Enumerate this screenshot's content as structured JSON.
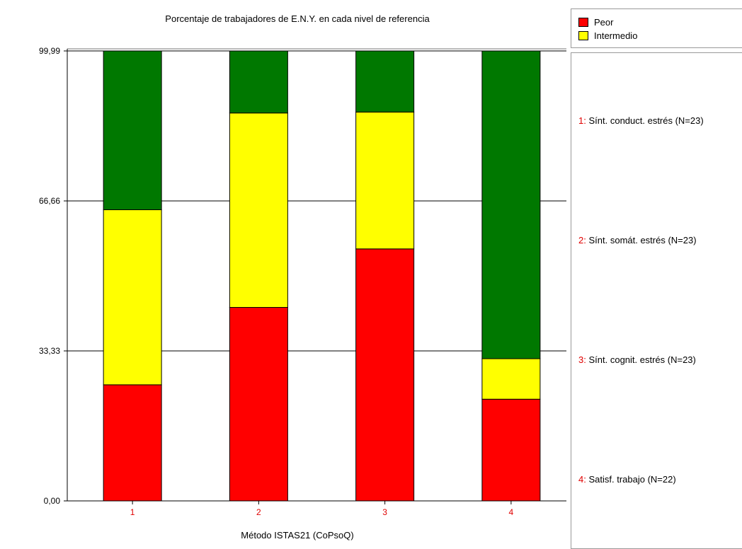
{
  "chart_data": {
    "type": "bar",
    "stacked": true,
    "title": "Porcentaje de trabajadores de E.N.Y. en cada nivel de referencia",
    "xlabel": "Método ISTAS21 (CoPsoQ)",
    "ylabel": "",
    "ylim": [
      0,
      99.99
    ],
    "yticks": [
      "0,00",
      "33,33",
      "66,66",
      "99,99"
    ],
    "categories": [
      "1",
      "2",
      "3",
      "4"
    ],
    "series": [
      {
        "name": "Peor",
        "color": "#ff0000",
        "values": [
          25.8,
          43.0,
          56.0,
          22.6
        ]
      },
      {
        "name": "Intermedio",
        "color": "#ffff00",
        "values": [
          38.9,
          43.2,
          30.4,
          9.0
        ]
      },
      {
        "name": "",
        "color": "#007800",
        "values": [
          35.29,
          13.79,
          13.59,
          68.39
        ]
      }
    ],
    "grid": true,
    "legend": "right"
  },
  "legend": {
    "items": [
      {
        "label": "Peor",
        "color": "#ff0000"
      },
      {
        "label": "Intermedio",
        "color": "#ffff00"
      }
    ]
  },
  "descriptions": [
    {
      "num": "1",
      "text": "Sínt. conduct. estrés (N=23)"
    },
    {
      "num": "2",
      "text": "Sínt. somát. estrés (N=23)"
    },
    {
      "num": "3",
      "text": "Sínt. cognit. estrés (N=23)"
    },
    {
      "num": "4",
      "text": "Satisf. trabajo (N=22)"
    }
  ]
}
